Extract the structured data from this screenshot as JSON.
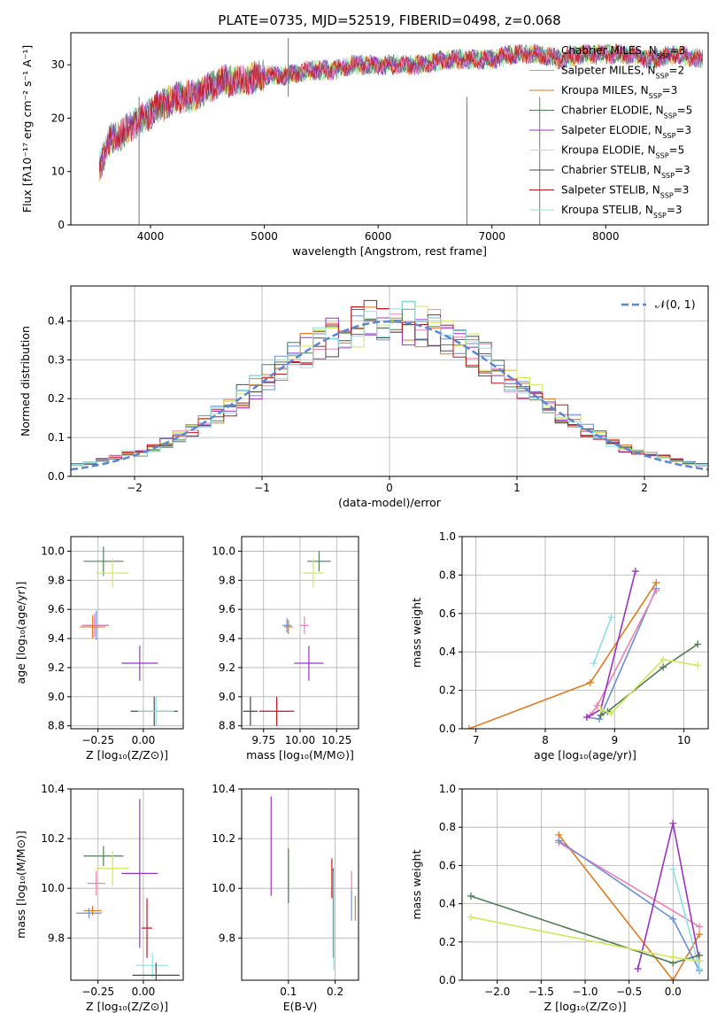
{
  "figure": {
    "title": "PLATE=0735, MJD=52519, FIBERID=0498, z=0.068"
  },
  "models": [
    {
      "name": "Chabrier MILES",
      "nssp": "3",
      "color": "#6a8fd6"
    },
    {
      "name": "Salpeter MILES",
      "nssp": "2",
      "color": "#ec82b4"
    },
    {
      "name": "Kroupa MILES",
      "nssp": "3",
      "color": "#e07b20"
    },
    {
      "name": "Chabrier ELODIE",
      "nssp": "5",
      "color": "#4f7d55"
    },
    {
      "name": "Salpeter ELODIE",
      "nssp": "3",
      "color": "#9b33c2"
    },
    {
      "name": "Kroupa ELODIE",
      "nssp": "5",
      "color": "#d2e85a"
    },
    {
      "name": "Chabrier STELIB",
      "nssp": "3",
      "color": "#4a4a4a"
    },
    {
      "name": "Salpeter STELIB",
      "nssp": "3",
      "color": "#c0161e"
    },
    {
      "name": "Kroupa STELIB",
      "nssp": "3",
      "color": "#8fe0e4"
    }
  ],
  "chart_data": [
    {
      "id": "spectrum",
      "type": "line",
      "xlabel": "wavelength [Angstrom, rest frame]",
      "ylabel": "Flux [fλ10⁻¹⁷ erg cm⁻² s⁻¹ A⁻¹]",
      "xlim": [
        3300,
        8900
      ],
      "ylim": [
        0,
        36
      ],
      "xticks": [
        "4000",
        "5000",
        "6000",
        "7000",
        "8000"
      ],
      "yticks": [
        "0",
        "10",
        "20",
        "30"
      ],
      "spectrum": {
        "x": [
          3550,
          3650,
          3750,
          3850,
          3950,
          4050,
          4150,
          4250,
          4350,
          4450,
          4550,
          4650,
          4800,
          5000,
          5200,
          5400,
          5600,
          5800,
          6000,
          6200,
          6400,
          6600,
          6800,
          7000,
          7200,
          7400,
          7600,
          7800,
          8000,
          8200,
          8400,
          8600,
          8850
        ],
        "y": [
          11,
          16,
          17,
          19,
          20,
          22,
          23,
          24,
          24,
          25,
          26,
          27,
          27,
          28,
          28,
          29,
          29,
          30,
          30,
          30,
          30,
          31,
          31,
          31,
          32,
          32,
          31,
          32,
          32,
          32,
          31,
          32,
          31
        ]
      },
      "artifacts": [
        {
          "x": 3900,
          "y_low": 0
        },
        {
          "x": 5210,
          "y_high": 35
        },
        {
          "x": 6780,
          "y_low": 0
        },
        {
          "x": 7420,
          "y_low": 0
        }
      ],
      "legend": "right"
    },
    {
      "id": "residuals",
      "type": "histogram",
      "xlabel": "(data-model)/error",
      "ylabel": "Normed distribution",
      "xlim": [
        -2.5,
        2.5
      ],
      "ylim": [
        0,
        0.49
      ],
      "xticks": [
        "−2",
        "−1",
        "0",
        "1",
        "2"
      ],
      "yticks": [
        "0.0",
        "0.1",
        "0.2",
        "0.3",
        "0.4"
      ],
      "reference": {
        "label": "𝒩(0, 1)",
        "mean": 0,
        "sigma": 1
      },
      "legend": "top-right"
    },
    {
      "id": "age_vs_Z",
      "type": "scatter",
      "xlabel": "Z [log₁₀(Z/Z⊙)]",
      "ylabel": "age  [log₁₀(age/yr)]",
      "xlim": [
        -0.4,
        0.22
      ],
      "ylim": [
        8.78,
        10.1
      ],
      "xticks": [
        "−0.25",
        "0.00"
      ],
      "yticks": [
        "8.8",
        "9.0",
        "9.2",
        "9.4",
        "9.6",
        "9.8",
        "10.0"
      ],
      "points": [
        {
          "model": 3,
          "x": -0.22,
          "y": 9.93,
          "xerr": 0.11,
          "yerr": 0.1
        },
        {
          "model": 5,
          "x": -0.17,
          "y": 9.85,
          "xerr": 0.09,
          "yerr": 0.1
        },
        {
          "model": 0,
          "x": -0.26,
          "y": 9.49,
          "xerr": 0.07,
          "yerr": 0.1
        },
        {
          "model": 1,
          "x": -0.27,
          "y": 9.49,
          "xerr": 0.07,
          "yerr": 0.08
        },
        {
          "model": 2,
          "x": -0.28,
          "y": 9.48,
          "xerr": 0.07,
          "yerr": 0.08
        },
        {
          "model": 4,
          "x": -0.02,
          "y": 9.23,
          "xerr": 0.1,
          "yerr": 0.12
        },
        {
          "model": 6,
          "x": 0.06,
          "y": 8.9,
          "xerr": 0.13,
          "yerr": 0.1
        },
        {
          "model": 8,
          "x": 0.07,
          "y": 8.9,
          "xerr": 0.1,
          "yerr": 0.1
        }
      ]
    },
    {
      "id": "age_vs_mass",
      "type": "scatter",
      "xlabel": "mass [log₁₀(M/M⊙)]",
      "ylabel": "",
      "xlim": [
        9.6,
        10.4
      ],
      "ylim": [
        8.78,
        10.1
      ],
      "xticks": [
        "9.75",
        "10.00",
        "10.25"
      ],
      "yticks": [
        "8.8",
        "9.0",
        "9.2",
        "9.4",
        "9.6",
        "9.8",
        "10.0"
      ],
      "points": [
        {
          "model": 3,
          "x": 10.13,
          "y": 9.93,
          "xerr": 0.08,
          "yerr": 0.07
        },
        {
          "model": 5,
          "x": 10.09,
          "y": 9.85,
          "xerr": 0.07,
          "yerr": 0.1
        },
        {
          "model": 0,
          "x": 9.91,
          "y": 9.49,
          "xerr": 0.03,
          "yerr": 0.05
        },
        {
          "model": 1,
          "x": 10.03,
          "y": 9.49,
          "xerr": 0.03,
          "yerr": 0.06
        },
        {
          "model": 2,
          "x": 9.92,
          "y": 9.48,
          "xerr": 0.03,
          "yerr": 0.05
        },
        {
          "model": 4,
          "x": 10.06,
          "y": 9.23,
          "xerr": 0.1,
          "yerr": 0.12
        },
        {
          "model": 7,
          "x": 9.84,
          "y": 8.9,
          "xerr": 0.12,
          "yerr": 0.1
        },
        {
          "model": 6,
          "x": 9.66,
          "y": 8.9,
          "xerr": 0.05,
          "yerr": 0.1
        }
      ]
    },
    {
      "id": "mass_weight_vs_age",
      "type": "line",
      "xlabel": "age  [log₁₀(age/yr)]",
      "ylabel": "mass weight",
      "xlim": [
        6.8,
        10.35
      ],
      "ylim": [
        0,
        1
      ],
      "xticks": [
        "7",
        "8",
        "9",
        "10"
      ],
      "yticks": [
        "0.0",
        "0.2",
        "0.4",
        "0.6",
        "0.8",
        "1.0"
      ],
      "series": [
        {
          "model": 2,
          "x": [
            6.9,
            8.65,
            9.6
          ],
          "y": [
            0.0,
            0.24,
            0.76
          ]
        },
        {
          "model": 0,
          "x": [
            8.6,
            8.78,
            9.6
          ],
          "y": [
            0.06,
            0.05,
            0.73
          ]
        },
        {
          "model": 1,
          "x": [
            8.65,
            8.75,
            9.6
          ],
          "y": [
            0.07,
            0.12,
            0.72
          ]
        },
        {
          "model": 4,
          "x": [
            8.6,
            8.8,
            9.3
          ],
          "y": [
            0.06,
            0.1,
            0.82
          ]
        },
        {
          "model": 8,
          "x": [
            8.7,
            8.95
          ],
          "y": [
            0.34,
            0.58
          ]
        },
        {
          "model": 3,
          "x": [
            8.8,
            8.9,
            9.7,
            10.2
          ],
          "y": [
            0.07,
            0.09,
            0.32,
            0.44
          ]
        },
        {
          "model": 5,
          "x": [
            8.8,
            8.95,
            9.7,
            10.2
          ],
          "y": [
            0.1,
            0.08,
            0.36,
            0.33
          ]
        }
      ]
    },
    {
      "id": "mass_vs_Z",
      "type": "scatter",
      "xlabel": "Z [log₁₀(Z/Z⊙)]",
      "ylabel": "mass [log₁₀(M/M⊙)]",
      "xlim": [
        -0.4,
        0.22
      ],
      "ylim": [
        9.63,
        10.4
      ],
      "xticks": [
        "−0.25",
        "0.00"
      ],
      "yticks": [
        "9.8",
        "10.0",
        "10.2",
        "10.4"
      ],
      "points": [
        {
          "model": 3,
          "x": -0.22,
          "y": 10.13,
          "xerr": 0.11,
          "yerr": 0.04
        },
        {
          "model": 5,
          "x": -0.17,
          "y": 10.08,
          "xerr": 0.09,
          "yerr": 0.07
        },
        {
          "model": 4,
          "x": -0.02,
          "y": 10.06,
          "xerr": 0.1,
          "yerr": 0.3
        },
        {
          "model": 1,
          "x": -0.26,
          "y": 10.02,
          "xerr": 0.05,
          "yerr": 0.05
        },
        {
          "model": 2,
          "x": -0.28,
          "y": 9.91,
          "xerr": 0.05,
          "yerr": 0.02
        },
        {
          "model": 0,
          "x": -0.3,
          "y": 9.9,
          "xerr": 0.07,
          "yerr": 0.02
        },
        {
          "model": 7,
          "x": 0.02,
          "y": 9.84,
          "xerr": 0.03,
          "yerr": 0.12
        },
        {
          "model": 8,
          "x": 0.05,
          "y": 9.69,
          "xerr": 0.09,
          "yerr": 0.05
        },
        {
          "model": 6,
          "x": 0.07,
          "y": 9.65,
          "xerr": 0.13,
          "yerr": 0.05
        }
      ]
    },
    {
      "id": "mass_vs_EBV",
      "type": "scatter",
      "xlabel": "E(B-V)",
      "ylabel": "",
      "xlim": [
        0.0,
        0.25
      ],
      "ylim": [
        9.63,
        10.4
      ],
      "xticks": [
        "0.1",
        "0.2"
      ],
      "yticks": [
        "9.8",
        "10.0",
        "10.2",
        "10.4"
      ],
      "points": [
        {
          "model": 4,
          "x": 0.063,
          "y": 10.17,
          "yerr": 0.2
        },
        {
          "model": 5,
          "x": 0.1,
          "y": 10.08,
          "yerr": 0.09
        },
        {
          "model": 3,
          "x": 0.1,
          "y": 10.05,
          "yerr": 0.11
        },
        {
          "model": 7,
          "x": 0.193,
          "y": 10.04,
          "yerr": 0.08
        },
        {
          "model": 6,
          "x": 0.196,
          "y": 9.9,
          "yerr": 0.18
        },
        {
          "model": 8,
          "x": 0.197,
          "y": 9.87,
          "yerr": 0.2
        },
        {
          "model": 1,
          "x": 0.235,
          "y": 10.03,
          "yerr": 0.04
        },
        {
          "model": 0,
          "x": 0.235,
          "y": 9.93,
          "yerr": 0.06
        },
        {
          "model": 2,
          "x": 0.243,
          "y": 9.92,
          "yerr": 0.05
        }
      ]
    },
    {
      "id": "mass_weight_vs_Z",
      "type": "line",
      "xlabel": "Z [log₁₀(Z/Z⊙)]",
      "ylabel": "mass weight",
      "xlim": [
        -2.4,
        0.4
      ],
      "ylim": [
        0,
        1
      ],
      "xticks": [
        "−2.0",
        "−1.5",
        "−1.0",
        "−0.5",
        "0.0"
      ],
      "yticks": [
        "0.0",
        "0.2",
        "0.4",
        "0.6",
        "0.8",
        "1.0"
      ],
      "series": [
        {
          "model": 2,
          "x": [
            -1.3,
            0.0,
            0.3
          ],
          "y": [
            0.76,
            0.0,
            0.24
          ]
        },
        {
          "model": 1,
          "x": [
            -1.3,
            0.3
          ],
          "y": [
            0.72,
            0.28
          ]
        },
        {
          "model": 0,
          "x": [
            -1.3,
            0.0,
            0.3
          ],
          "y": [
            0.73,
            0.32,
            0.05
          ]
        },
        {
          "model": 4,
          "x": [
            -0.4,
            0.0,
            0.3
          ],
          "y": [
            0.06,
            0.82,
            0.1
          ]
        },
        {
          "model": 8,
          "x": [
            0.0,
            0.3
          ],
          "y": [
            0.58,
            0.06
          ]
        },
        {
          "model": 3,
          "x": [
            -2.3,
            0.0,
            0.3
          ],
          "y": [
            0.44,
            0.09,
            0.13
          ]
        },
        {
          "model": 5,
          "x": [
            -2.3,
            0.0,
            0.3
          ],
          "y": [
            0.33,
            0.12,
            0.1
          ]
        }
      ]
    }
  ]
}
